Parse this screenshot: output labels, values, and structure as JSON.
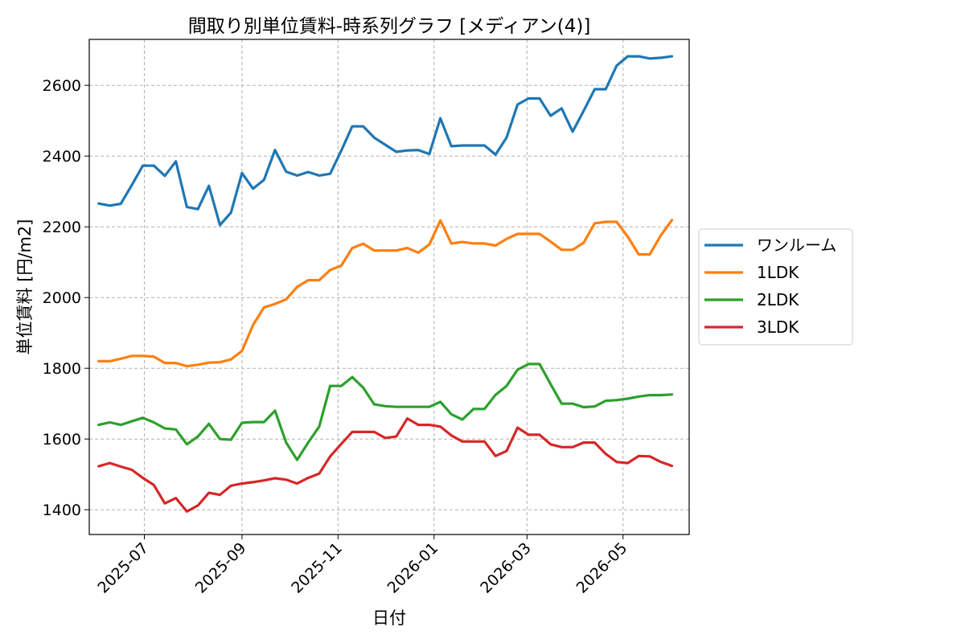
{
  "chart_data": {
    "type": "line",
    "title": "間取り別単位賃料-時系列グラフ [メディアン(4)]",
    "xlabel": "日付",
    "ylabel": "単位賃料 [円/m2]",
    "x_tick_labels": [
      "2025-07",
      "2025-09",
      "2025-11",
      "2026-01",
      "2026-03",
      "2026-05"
    ],
    "x_ticks": [
      "2025-07-01",
      "2025-09-01",
      "2025-11-01",
      "2026-01-01",
      "2026-03-01",
      "2026-05-01"
    ],
    "xlim": [
      "2025-05-27",
      "2026-06-12"
    ],
    "y_ticks": [
      1400,
      1600,
      1800,
      2000,
      2200,
      2400,
      2600
    ],
    "ylim": [
      1330,
      2730
    ],
    "grid": true,
    "legend_position": "right-outside",
    "x": [
      "2025-06-02",
      "2025-06-09",
      "2025-06-16",
      "2025-06-23",
      "2025-06-30",
      "2025-07-07",
      "2025-07-14",
      "2025-07-21",
      "2025-07-28",
      "2025-08-04",
      "2025-08-11",
      "2025-08-18",
      "2025-08-25",
      "2025-09-01",
      "2025-09-08",
      "2025-09-15",
      "2025-09-22",
      "2025-09-29",
      "2025-10-06",
      "2025-10-13",
      "2025-10-20",
      "2025-10-27",
      "2025-11-03",
      "2025-11-10",
      "2025-11-17",
      "2025-11-24",
      "2025-12-01",
      "2025-12-08",
      "2025-12-15",
      "2025-12-22",
      "2025-12-29",
      "2026-01-05",
      "2026-01-12",
      "2026-01-19",
      "2026-01-26",
      "2026-02-02",
      "2026-02-09",
      "2026-02-16",
      "2026-02-23",
      "2026-03-02",
      "2026-03-09",
      "2026-03-16",
      "2026-03-23",
      "2026-03-30",
      "2026-04-06",
      "2026-04-13",
      "2026-04-20",
      "2026-04-27",
      "2026-05-04",
      "2026-05-11",
      "2026-05-18",
      "2026-05-25",
      "2026-06-01"
    ],
    "series": [
      {
        "name": "ワンルーム",
        "color": "#1f77b4",
        "values": [
          2266,
          2260,
          2265,
          2318,
          2373,
          2373,
          2344,
          2385,
          2256,
          2250,
          2316,
          2205,
          2240,
          2352,
          2308,
          2333,
          2417,
          2356,
          2345,
          2355,
          2345,
          2350,
          2415,
          2484,
          2484,
          2452,
          2432,
          2412,
          2416,
          2417,
          2406,
          2507,
          2428,
          2430,
          2430,
          2430,
          2404,
          2452,
          2546,
          2563,
          2563,
          2514,
          2535,
          2469,
          2528,
          2589,
          2589,
          2656,
          2682,
          2682,
          2676,
          2678,
          2682
        ]
      },
      {
        "name": "1LDK",
        "color": "#ff7f0e",
        "values": [
          1820,
          1820,
          1827,
          1835,
          1835,
          1833,
          1815,
          1815,
          1806,
          1810,
          1816,
          1817,
          1825,
          1849,
          1922,
          1972,
          1982,
          1995,
          2030,
          2049,
          2049,
          2078,
          2090,
          2140,
          2152,
          2133,
          2133,
          2133,
          2140,
          2127,
          2150,
          2218,
          2153,
          2157,
          2153,
          2153,
          2147,
          2166,
          2180,
          2180,
          2180,
          2158,
          2135,
          2135,
          2155,
          2210,
          2214,
          2214,
          2172,
          2122,
          2122,
          2176,
          2219
        ]
      },
      {
        "name": "2LDK",
        "color": "#2ca02c",
        "values": [
          1640,
          1647,
          1640,
          1650,
          1660,
          1647,
          1630,
          1627,
          1585,
          1607,
          1643,
          1600,
          1598,
          1646,
          1648,
          1648,
          1680,
          1590,
          1541,
          1590,
          1635,
          1750,
          1750,
          1775,
          1745,
          1698,
          1693,
          1691,
          1691,
          1691,
          1691,
          1705,
          1670,
          1655,
          1685,
          1685,
          1725,
          1750,
          1796,
          1812,
          1812,
          1755,
          1700,
          1700,
          1690,
          1692,
          1708,
          1710,
          1714,
          1720,
          1724,
          1724,
          1726
        ]
      },
      {
        "name": "3LDK",
        "color": "#d62728",
        "values": [
          1523,
          1532,
          1522,
          1513,
          1490,
          1470,
          1418,
          1433,
          1395,
          1412,
          1448,
          1442,
          1468,
          1474,
          1478,
          1483,
          1489,
          1485,
          1474,
          1490,
          1502,
          1551,
          1586,
          1620,
          1620,
          1620,
          1603,
          1607,
          1658,
          1640,
          1640,
          1635,
          1610,
          1593,
          1593,
          1593,
          1552,
          1566,
          1632,
          1612,
          1612,
          1585,
          1577,
          1577,
          1590,
          1590,
          1558,
          1535,
          1532,
          1552,
          1551,
          1535,
          1524
        ]
      }
    ]
  }
}
